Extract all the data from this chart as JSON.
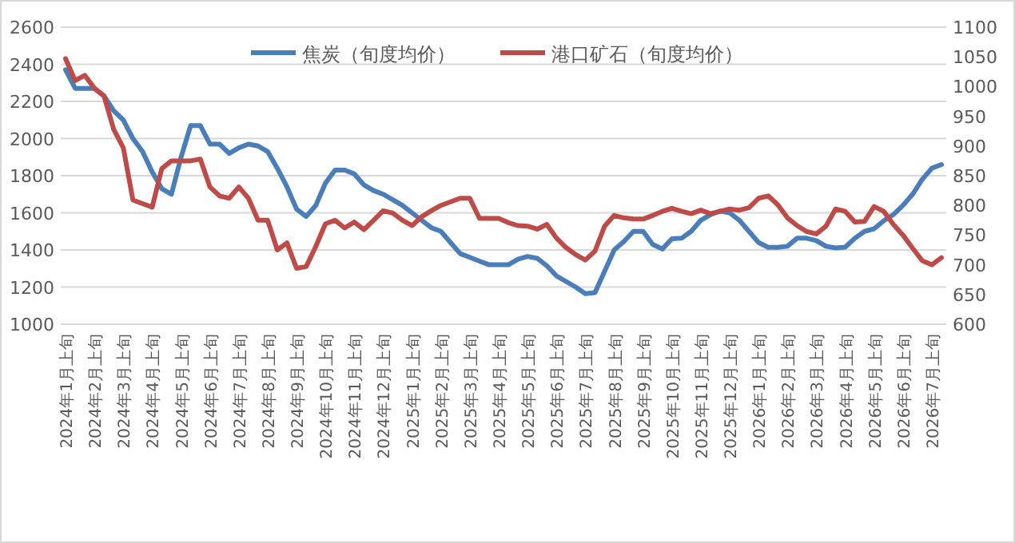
{
  "chart_data": {
    "type": "line",
    "categories": [
      "2024年1月上旬",
      null,
      null,
      "2024年2月上旬",
      null,
      null,
      "2024年3月上旬",
      null,
      null,
      "2024年4月上旬",
      null,
      null,
      "2024年5月上旬",
      null,
      null,
      "2024年6月上旬",
      null,
      null,
      "2024年7月上旬",
      null,
      null,
      "2024年8月上旬",
      null,
      null,
      "2024年9月上旬",
      null,
      null,
      "2024年10月上旬",
      null,
      null,
      "2024年11月上旬",
      null,
      null,
      "2024年12月上旬",
      null,
      null,
      "2025年1月上旬",
      null,
      null,
      "2025年2月上旬",
      null,
      null,
      "2025年3月上旬",
      null,
      null,
      "2025年4月上旬",
      null,
      null,
      "2025年5月上旬",
      null,
      null,
      "2025年6月上旬",
      null,
      null,
      "2025年7月上旬",
      null,
      null,
      "2025年8月上旬",
      null,
      null,
      "2025年9月上旬",
      null,
      null,
      "2025年10月上旬",
      null,
      null,
      "2025年11月上旬",
      null,
      null,
      "2025年12月上旬",
      null,
      null,
      "2026年1月上旬",
      null,
      null,
      "2026年2月上旬",
      null,
      null,
      "2026年3月上旬",
      null,
      null,
      "2026年4月上旬",
      null,
      null,
      "2026年5月上旬",
      null,
      null,
      "2026年6月上旬",
      null,
      null,
      "2026年7月上旬",
      null
    ],
    "series": [
      {
        "name": "焦炭（旬度均价）",
        "color": "#4a7ebb",
        "values": [
          2370,
          2270,
          2270,
          2270,
          2230,
          2150,
          2100,
          2000,
          1930,
          1820,
          1730,
          1700,
          1900,
          2070,
          2070,
          1970,
          1970,
          1920,
          1950,
          1970,
          1960,
          1930,
          1840,
          1740,
          1620,
          1580,
          1640,
          1760,
          1830,
          1830,
          1810,
          1750,
          1720,
          1700,
          1670,
          1640,
          1600,
          1560,
          1520,
          1500,
          1440,
          1380,
          1360,
          1340,
          1320,
          1320,
          1320,
          1350,
          1365,
          1355,
          1315,
          1260,
          1230,
          1200,
          1165,
          1170,
          1285,
          1400,
          1445,
          1500,
          1500,
          1430,
          1405,
          1460,
          1463,
          1500,
          1560,
          1590,
          1610,
          1600,
          1560,
          1500,
          1440,
          1414,
          1414,
          1420,
          1463,
          1463,
          1450,
          1420,
          1411,
          1415,
          1463,
          1500,
          1514,
          1557,
          1590,
          1640,
          1700,
          1780,
          1840,
          1860
        ]
      },
      {
        "name": "港口矿石（旬度均价）",
        "color": "#be4b48",
        "axis": "y2",
        "values": [
          1047,
          1010,
          1019,
          997,
          984,
          928,
          897,
          809,
          803,
          797,
          862,
          875,
          875,
          875,
          878,
          831,
          816,
          812,
          831,
          812,
          775,
          775,
          725,
          737,
          694,
          697,
          731,
          769,
          775,
          762,
          772,
          759,
          775,
          791,
          787,
          775,
          766,
          781,
          791,
          800,
          806,
          812,
          812,
          778,
          778,
          778,
          771,
          766,
          765,
          760,
          768,
          745,
          729,
          717,
          708,
          723,
          765,
          783,
          779,
          777,
          777,
          783,
          790,
          795,
          790,
          786,
          792,
          786,
          790,
          794,
          792,
          796,
          812,
          816,
          801,
          779,
          766,
          756,
          752,
          765,
          794,
          790,
          772,
          773,
          798,
          790,
          768,
          750,
          728,
          707,
          700,
          712
        ]
      }
    ],
    "ylim": [
      1000,
      2600
    ],
    "yticks": [
      1000,
      1200,
      1400,
      1600,
      1800,
      2000,
      2200,
      2400,
      2600
    ],
    "y2lim": [
      600,
      1100
    ],
    "y2ticks": [
      600,
      650,
      700,
      750,
      800,
      850,
      900,
      950,
      1000,
      1050,
      1100
    ],
    "grid": "y",
    "legend": "top",
    "line_style": "solid",
    "marker": "none"
  }
}
